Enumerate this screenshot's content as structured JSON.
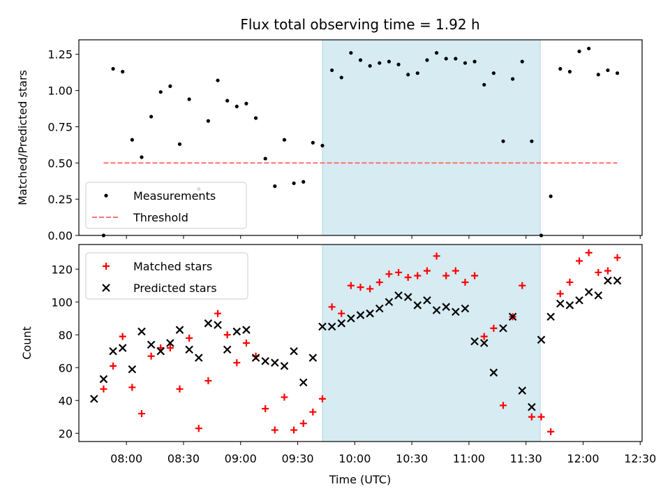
{
  "chart_data": {
    "title": "Flux total observing time = 1.92 h",
    "xlabel": "Time (UTC)",
    "x_ticks": [
      "08:00",
      "08:30",
      "09:00",
      "09:30",
      "10:00",
      "10:30",
      "11:00",
      "11:30",
      "12:00",
      "12:30"
    ],
    "x_tick_minutes": [
      480,
      510,
      540,
      570,
      600,
      630,
      660,
      690,
      720,
      750
    ],
    "xlim_minutes": [
      455,
      751
    ],
    "highlight_span_minutes": [
      583,
      697.5
    ],
    "colors": {
      "highlight": "#add8e6",
      "measurement": "#000000",
      "threshold": "#ff7070",
      "matched": "#ff0000",
      "predicted": "#000000"
    },
    "panels": [
      {
        "type": "scatter",
        "ylabel": "Matched/Predicted stars",
        "ylim": [
          0,
          1.35
        ],
        "y_ticks": [
          0.0,
          0.25,
          0.5,
          0.75,
          1.0,
          1.25
        ],
        "y_tick_labels": [
          "0.00",
          "0.25",
          "0.50",
          "0.75",
          "1.00",
          "1.25"
        ],
        "legend": {
          "position": "lower-left",
          "entries": [
            "Measurements",
            "Threshold"
          ]
        },
        "threshold": {
          "name": "Threshold",
          "value": 0.5,
          "x_range_minutes": [
            468,
            738
          ]
        },
        "series": [
          {
            "name": "Measurements",
            "x": [
              468,
              473,
              478,
              483,
              488,
              493,
              498,
              503,
              508,
              513,
              518,
              523,
              528,
              533,
              538,
              543,
              548,
              553,
              558,
              563,
              568,
              573,
              578,
              583,
              588,
              593,
              598,
              603,
              608,
              613,
              618,
              623,
              628,
              633,
              638,
              643,
              648,
              653,
              658,
              663,
              668,
              673,
              678,
              683,
              688,
              693,
              698,
              703,
              708,
              713,
              718,
              723,
              728,
              733,
              738
            ],
            "y": [
              0.0,
              1.15,
              1.13,
              0.66,
              0.54,
              0.82,
              0.99,
              1.03,
              0.63,
              0.94,
              0.32,
              0.79,
              1.07,
              0.93,
              0.89,
              0.91,
              0.81,
              0.53,
              0.34,
              0.66,
              0.36,
              0.37,
              0.64,
              0.62,
              1.14,
              1.09,
              1.26,
              1.21,
              1.17,
              1.19,
              1.2,
              1.18,
              1.11,
              1.12,
              1.21,
              1.26,
              1.22,
              1.22,
              1.19,
              1.2,
              1.04,
              1.12,
              0.65,
              1.08,
              1.2,
              0.65,
              0.0,
              0.27,
              1.15,
              1.13,
              1.27,
              1.29,
              1.11,
              1.14,
              1.12
            ]
          }
        ]
      },
      {
        "type": "scatter",
        "ylabel": "Count",
        "ylim": [
          15,
          135
        ],
        "y_ticks": [
          20,
          40,
          60,
          80,
          100,
          120
        ],
        "y_tick_labels": [
          "20",
          "40",
          "60",
          "80",
          "100",
          "120"
        ],
        "legend": {
          "position": "top-left",
          "entries": [
            "Matched stars",
            "Predicted stars"
          ]
        },
        "series": [
          {
            "name": "Matched stars",
            "marker": "plus",
            "x": [
              468,
              473,
              478,
              483,
              488,
              493,
              498,
              503,
              508,
              513,
              518,
              523,
              528,
              533,
              538,
              543,
              548,
              553,
              558,
              563,
              568,
              573,
              578,
              583,
              588,
              593,
              598,
              603,
              608,
              613,
              618,
              623,
              628,
              633,
              638,
              643,
              648,
              653,
              658,
              663,
              668,
              673,
              678,
              683,
              688,
              693,
              698,
              703,
              708,
              713,
              718,
              723,
              728,
              733,
              738
            ],
            "y": [
              47,
              61,
              79,
              48,
              32,
              67,
              72,
              72,
              47,
              78,
              23,
              52,
              93,
              80,
              63,
              75,
              67,
              35,
              22,
              42,
              22,
              26,
              33,
              41,
              97,
              93,
              110,
              109,
              108,
              112,
              117,
              118,
              115,
              116,
              119,
              128,
              116,
              119,
              112,
              116,
              79,
              84,
              37,
              91,
              110,
              30,
              30,
              21,
              105,
              112,
              125,
              130,
              118,
              119,
              127
            ]
          },
          {
            "name": "Predicted stars",
            "marker": "x",
            "x": [
              463,
              468,
              473,
              478,
              483,
              488,
              493,
              498,
              503,
              508,
              513,
              518,
              523,
              528,
              533,
              538,
              543,
              548,
              553,
              558,
              563,
              568,
              573,
              578,
              583,
              588,
              593,
              598,
              603,
              608,
              613,
              618,
              623,
              628,
              633,
              638,
              643,
              648,
              653,
              658,
              663,
              668,
              673,
              678,
              683,
              688,
              693,
              698,
              703,
              708,
              713,
              718,
              723,
              728,
              733,
              738
            ],
            "y": [
              41,
              53,
              70,
              72,
              59,
              82,
              74,
              70,
              75,
              83,
              71,
              66,
              87,
              86,
              71,
              82,
              83,
              66,
              64,
              63,
              61,
              70,
              51,
              66,
              85,
              85,
              87,
              90,
              92,
              93,
              96,
              100,
              104,
              103,
              98,
              101,
              95,
              97,
              94,
              96,
              76,
              75,
              57,
              84,
              91,
              46,
              36,
              77,
              91,
              99,
              98,
              101,
              106,
              104,
              113,
              113
            ]
          }
        ]
      }
    ]
  }
}
